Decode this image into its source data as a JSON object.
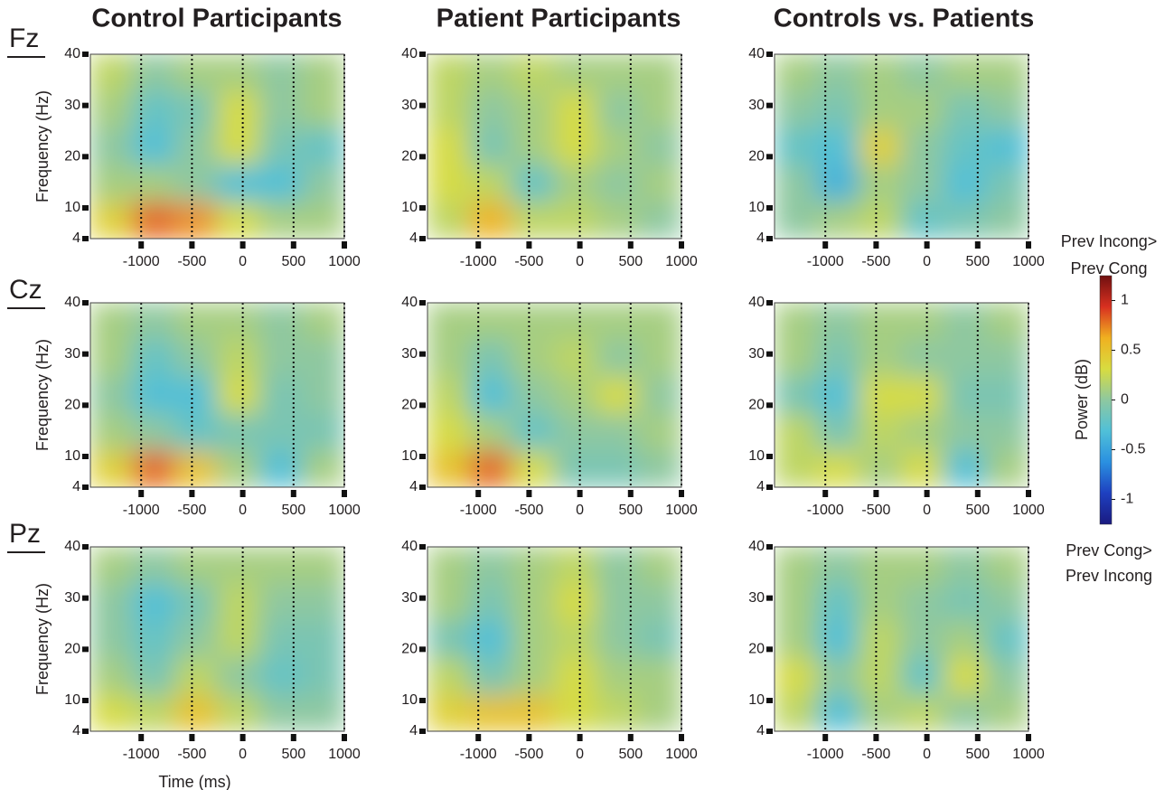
{
  "column_titles": [
    "Control Participants",
    "Patient Participants",
    "Controls vs. Patients"
  ],
  "row_labels": [
    "Fz",
    "Cz",
    "Pz"
  ],
  "colorbar": {
    "title": "Power (dB)",
    "top_label": [
      "Prev Incong>",
      "Prev Cong"
    ],
    "bottom_label": [
      "Prev Cong>",
      "Prev Incong"
    ],
    "ylim": [
      -1.25,
      1.25
    ],
    "yticks": [
      -1,
      -0.5,
      0,
      0.5,
      1
    ],
    "colormap": [
      "#1a1a80",
      "#1e40c0",
      "#2a90e0",
      "#50c0d8",
      "#8ec8a0",
      "#d8dc40",
      "#f0b020",
      "#d83020",
      "#701010"
    ]
  },
  "chart_data": [
    {
      "type": "heatmap",
      "ylabel": "Frequency (Hz)",
      "xlim": [
        -1500,
        1000
      ],
      "xticks": [
        -1000,
        -500,
        0,
        500,
        1000
      ],
      "ylim": [
        4,
        40
      ],
      "yticks": [
        4,
        10,
        20,
        30,
        40
      ],
      "grid": true,
      "z": [
        [
          0.4,
          0.8,
          0.7,
          0.3,
          0.1,
          0.1
        ],
        [
          0.1,
          0.1,
          0,
          -0.3,
          -0.3,
          0
        ],
        [
          0,
          -0.3,
          0,
          0.3,
          -0.1,
          -0.2
        ],
        [
          0.1,
          -0.2,
          -0.1,
          0.3,
          0,
          0.1
        ],
        [
          0.2,
          0,
          0.1,
          0.1,
          0,
          0.1
        ]
      ]
    },
    {
      "type": "heatmap",
      "xlim": [
        -1500,
        1000
      ],
      "xticks": [
        -1000,
        -500,
        0,
        500,
        1000
      ],
      "ylim": [
        4,
        40
      ],
      "yticks": [
        4,
        10,
        20,
        30,
        40
      ],
      "grid": true,
      "z": [
        [
          0.2,
          0.6,
          0.2,
          0.2,
          0.1,
          0
        ],
        [
          0.3,
          0.2,
          -0.2,
          0.1,
          0,
          0.1
        ],
        [
          0.3,
          -0.1,
          0.1,
          0.3,
          0.1,
          0
        ],
        [
          0.2,
          0,
          0.1,
          0.3,
          0,
          0.1
        ],
        [
          0.2,
          0.1,
          0.2,
          0.1,
          0.1,
          0.1
        ]
      ]
    },
    {
      "type": "heatmap",
      "xlim": [
        -1500,
        1000
      ],
      "xticks": [
        -1000,
        -500,
        0,
        500,
        1000
      ],
      "ylim": [
        4,
        40
      ],
      "yticks": [
        4,
        10,
        20,
        30,
        40
      ],
      "grid": true,
      "z": [
        [
          0,
          0.1,
          0.2,
          -0.2,
          -0.1,
          0
        ],
        [
          0,
          -0.4,
          0.1,
          0,
          -0.3,
          -0.1
        ],
        [
          -0.2,
          -0.3,
          0.4,
          0,
          -0.2,
          -0.3
        ],
        [
          0,
          -0.1,
          0.1,
          0.1,
          -0.1,
          0
        ],
        [
          0.1,
          0,
          0.1,
          0,
          0.1,
          0.1
        ]
      ]
    },
    {
      "type": "heatmap",
      "ylabel": "Frequency (Hz)",
      "xlim": [
        -1500,
        1000
      ],
      "xticks": [
        -1000,
        -500,
        0,
        500,
        1000
      ],
      "ylim": [
        4,
        40
      ],
      "yticks": [
        4,
        10,
        20,
        30,
        40
      ],
      "grid": true,
      "z": [
        [
          0.4,
          0.8,
          0.5,
          0.1,
          -0.3,
          0.1
        ],
        [
          0.1,
          0,
          -0.2,
          -0.1,
          -0.1,
          -0.1
        ],
        [
          0,
          -0.3,
          -0.3,
          0.3,
          -0.1,
          0
        ],
        [
          0.1,
          -0.2,
          0,
          0.2,
          0,
          0
        ],
        [
          0.1,
          0,
          0.1,
          0.1,
          0,
          0.1
        ]
      ]
    },
    {
      "type": "heatmap",
      "xlim": [
        -1500,
        1000
      ],
      "xticks": [
        -1000,
        -500,
        0,
        500,
        1000
      ],
      "ylim": [
        4,
        40
      ],
      "yticks": [
        4,
        10,
        20,
        30,
        40
      ],
      "grid": true,
      "z": [
        [
          0.5,
          0.8,
          0.3,
          -0.1,
          -0.1,
          0
        ],
        [
          0.3,
          0.1,
          -0.2,
          0,
          0,
          0.1
        ],
        [
          0.2,
          -0.3,
          0,
          0.1,
          0.3,
          0
        ],
        [
          0.1,
          -0.1,
          0.1,
          0.2,
          0,
          0.1
        ],
        [
          0.1,
          0.1,
          0.1,
          0.1,
          0.1,
          0.1
        ]
      ]
    },
    {
      "type": "heatmap",
      "xlim": [
        -1500,
        1000
      ],
      "xticks": [
        -1000,
        -500,
        0,
        500,
        1000
      ],
      "ylim": [
        4,
        40
      ],
      "yticks": [
        4,
        10,
        20,
        30,
        40
      ],
      "grid": true,
      "z": [
        [
          0.2,
          0.3,
          0.1,
          0.3,
          -0.3,
          0.1
        ],
        [
          0.2,
          -0.1,
          0.2,
          0.1,
          0,
          0
        ],
        [
          -0.1,
          -0.3,
          0.3,
          0.3,
          -0.1,
          -0.1
        ],
        [
          0.1,
          -0.1,
          0.1,
          0,
          0,
          0
        ],
        [
          0.1,
          0,
          0.1,
          0.1,
          0,
          0.1
        ]
      ]
    },
    {
      "type": "heatmap",
      "ylabel": "Frequency (Hz)",
      "xlabel": "Time (ms)",
      "xlim": [
        -1500,
        1000
      ],
      "xticks": [
        -1000,
        -500,
        0,
        500,
        1000
      ],
      "ylim": [
        4,
        40
      ],
      "yticks": [
        4,
        10,
        20,
        30,
        40
      ],
      "grid": true,
      "z": [
        [
          0.3,
          0.2,
          0.5,
          0.2,
          0,
          0
        ],
        [
          0.1,
          -0.1,
          0.2,
          0,
          -0.2,
          -0.1
        ],
        [
          0,
          -0.2,
          0,
          0.2,
          -0.1,
          -0.1
        ],
        [
          0,
          -0.3,
          -0.1,
          0.2,
          0,
          0
        ],
        [
          0.1,
          0,
          0.1,
          0.1,
          0.1,
          0.1
        ]
      ]
    },
    {
      "type": "heatmap",
      "xlim": [
        -1500,
        1000
      ],
      "xticks": [
        -1000,
        -500,
        0,
        500,
        1000
      ],
      "ylim": [
        4,
        40
      ],
      "yticks": [
        4,
        10,
        20,
        30,
        40
      ],
      "grid": true,
      "z": [
        [
          0.4,
          0.5,
          0.5,
          0.3,
          0.2,
          0.1
        ],
        [
          0.2,
          -0.1,
          0.1,
          0.3,
          0.1,
          0.1
        ],
        [
          -0.1,
          -0.3,
          0.1,
          0.2,
          0,
          -0.1
        ],
        [
          0.1,
          -0.1,
          0.1,
          0.3,
          0,
          0
        ],
        [
          0.1,
          0,
          0.1,
          0.2,
          0,
          0.1
        ]
      ]
    },
    {
      "type": "heatmap",
      "xlim": [
        -1500,
        1000
      ],
      "xticks": [
        -1000,
        -500,
        0,
        500,
        1000
      ],
      "ylim": [
        4,
        40
      ],
      "yticks": [
        4,
        10,
        20,
        30,
        40
      ],
      "grid": true,
      "z": [
        [
          0.2,
          -0.3,
          0.1,
          0.2,
          0,
          0.1
        ],
        [
          0.3,
          0,
          0.2,
          -0.2,
          0.3,
          0
        ],
        [
          0.1,
          -0.3,
          0.2,
          0,
          0.1,
          -0.2
        ],
        [
          0.1,
          -0.2,
          0.1,
          0,
          -0.1,
          0
        ],
        [
          0.1,
          0,
          0.1,
          0.1,
          0,
          0.1
        ]
      ]
    }
  ]
}
